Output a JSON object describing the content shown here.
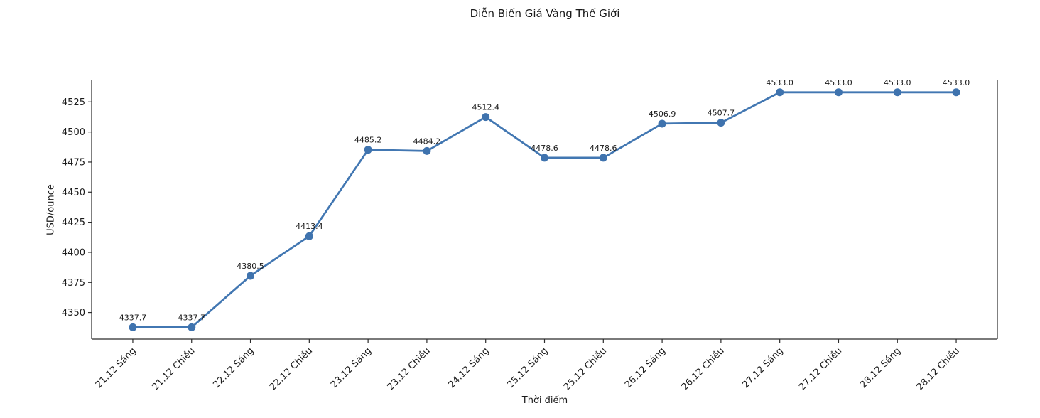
{
  "chart_data": {
    "type": "line",
    "title": "Diễn Biến Giá Vàng Thế Giới",
    "xlabel": "Thời điểm",
    "ylabel": "USD/ounce",
    "categories": [
      "21.12 Sáng",
      "21.12 Chiều",
      "22.12 Sáng",
      "22.12 Chiều",
      "23.12 Sáng",
      "23.12 Chiều",
      "24.12 Sáng",
      "25.12 Sáng",
      "25.12 Chiều",
      "26.12 Sáng",
      "26.12 Chiều",
      "27.12 Sáng",
      "27.12 Chiều",
      "28.12 Sáng",
      "28.12 Chiều"
    ],
    "values": [
      4337.7,
      4337.7,
      4380.5,
      4413.4,
      4485.2,
      4484.2,
      4512.4,
      4478.6,
      4478.6,
      4506.9,
      4507.7,
      4533.0,
      4533.0,
      4533.0,
      4533.0
    ],
    "data_labels": [
      "4337.7",
      "4337.7",
      "4380.5",
      "4413.4",
      "4485.2",
      "4484.2",
      "4512.4",
      "4478.6",
      "4478.6",
      "4506.9",
      "4507.7",
      "4533.0",
      "4533.0",
      "4533.0",
      "4533.0"
    ],
    "yticks": [
      4350,
      4375,
      4400,
      4425,
      4450,
      4475,
      4500,
      4525
    ],
    "ylim": [
      4327.9,
      4542.9
    ],
    "grid": false,
    "legend_position": "none",
    "x_tick_rotation_deg": 45,
    "line_color": "#4277b2",
    "marker_color": "#3f73ae",
    "axis_color": "#2b2b2b",
    "text_color": "#1a1a1a"
  }
}
